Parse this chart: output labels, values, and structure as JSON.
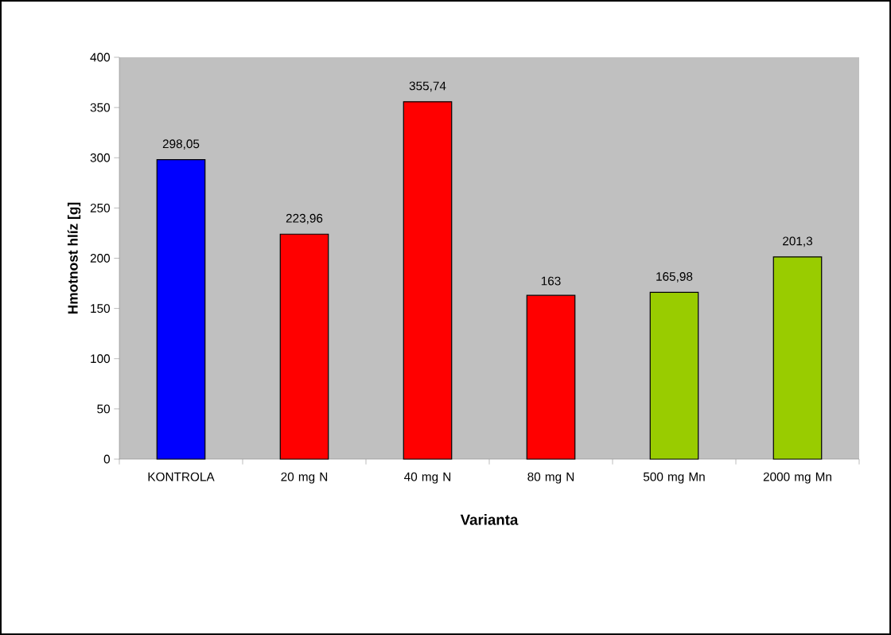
{
  "chart_data": {
    "type": "bar",
    "xlabel": "Varianta",
    "ylabel": "Hmotnost hlíz [g]",
    "categories": [
      "KONTROLA",
      "20 mg N",
      "40 mg N",
      "80 mg N",
      "500 mg Mn",
      "2000 mg Mn"
    ],
    "values": [
      298.05,
      223.96,
      355.74,
      163,
      165.98,
      201.3
    ],
    "value_labels": [
      "298,05",
      "223,96",
      "355,74",
      "163",
      "165,98",
      "201,3"
    ],
    "colors": [
      "#0000ff",
      "#ff0000",
      "#ff0000",
      "#ff0000",
      "#99cc00",
      "#99cc00"
    ],
    "ylim": [
      0,
      400
    ],
    "yticks": [
      0,
      50,
      100,
      150,
      200,
      250,
      300,
      350,
      400
    ]
  }
}
